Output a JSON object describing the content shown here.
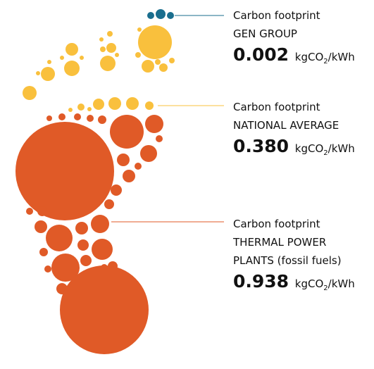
{
  "items": [
    {
      "lines": [
        "Carbon footprint",
        "GEN GROUP"
      ],
      "value": "0.002",
      "unit": {
        "base": "kgCO",
        "sub": "2",
        "rest": "/kWh"
      }
    },
    {
      "lines": [
        "Carbon footprint",
        "NATIONAL AVERAGE"
      ],
      "value": "0.380",
      "unit": {
        "base": "kgCO",
        "sub": "2",
        "rest": "/kWh"
      }
    },
    {
      "lines": [
        "Carbon footprint",
        "THERMAL POWER",
        "PLANTS (fossil fuels)"
      ],
      "value": "0.938",
      "unit": {
        "base": "kgCO",
        "sub": "2",
        "rest": "/kWh"
      }
    }
  ]
}
